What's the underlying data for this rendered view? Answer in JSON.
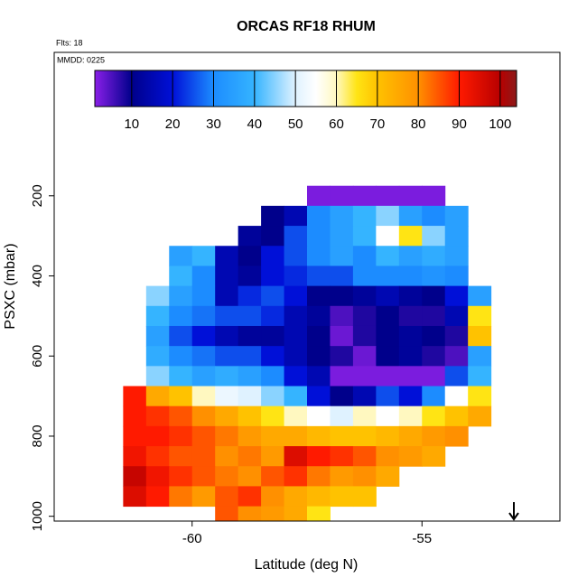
{
  "chart_data": {
    "type": "heatmap",
    "title": "ORCAS RF18 RHUM",
    "flights_label": "Flts: 18",
    "date_label": "MMDD: 0225",
    "x_label": "Latitude (deg N)",
    "y_label": "PSXC (mbar)",
    "xlim": [
      -63,
      -52
    ],
    "xticks": [
      -60,
      -55
    ],
    "ylim": [
      1012,
      -158
    ],
    "yticks": [
      200,
      400,
      600,
      800,
      1000
    ],
    "x": [
      -61.25,
      -60.75,
      -60.25,
      -59.75,
      -59.25,
      -58.75,
      -58.25,
      -57.75,
      -57.25,
      -56.75,
      -56.25,
      -55.75,
      -55.25,
      -54.75,
      -54.25,
      -53.75
    ],
    "y": [
      200,
      250,
      300,
      350,
      400,
      450,
      500,
      550,
      600,
      650,
      700,
      750,
      800,
      850,
      900,
      950,
      1000
    ],
    "z": [
      [
        null,
        null,
        null,
        null,
        null,
        null,
        null,
        null,
        2,
        2,
        2,
        2,
        2,
        2,
        null,
        null
      ],
      [
        null,
        null,
        null,
        null,
        null,
        null,
        10,
        15,
        30,
        35,
        40,
        45,
        35,
        30,
        35,
        null
      ],
      [
        null,
        null,
        null,
        null,
        null,
        12,
        10,
        25,
        30,
        35,
        40,
        55,
        65,
        45,
        35,
        null
      ],
      [
        null,
        null,
        35,
        40,
        15,
        10,
        20,
        25,
        30,
        35,
        30,
        40,
        35,
        38,
        35,
        null
      ],
      [
        null,
        null,
        40,
        30,
        15,
        12,
        20,
        22,
        25,
        25,
        30,
        30,
        30,
        32,
        30,
        null
      ],
      [
        null,
        45,
        35,
        30,
        15,
        22,
        25,
        20,
        10,
        10,
        12,
        15,
        12,
        10,
        20,
        35
      ],
      [
        null,
        40,
        30,
        28,
        25,
        25,
        22,
        15,
        12,
        5,
        8,
        10,
        8,
        8,
        15,
        65
      ],
      [
        null,
        35,
        25,
        20,
        15,
        12,
        12,
        15,
        10,
        3,
        8,
        10,
        12,
        10,
        8,
        70
      ],
      [
        null,
        38,
        30,
        28,
        25,
        25,
        20,
        15,
        10,
        8,
        3,
        10,
        12,
        8,
        5,
        35
      ],
      [
        null,
        45,
        40,
        35,
        38,
        35,
        30,
        20,
        15,
        2,
        2,
        2,
        2,
        2,
        25,
        40
      ],
      [
        90,
        75,
        70,
        60,
        52,
        50,
        45,
        40,
        20,
        10,
        15,
        25,
        20,
        30,
        55,
        65
      ],
      [
        90,
        88,
        85,
        80,
        75,
        70,
        65,
        60,
        55,
        50,
        60,
        55,
        60,
        65,
        70,
        75
      ],
      [
        90,
        90,
        88,
        85,
        82,
        78,
        75,
        75,
        72,
        70,
        70,
        72,
        75,
        78,
        80,
        null
      ],
      [
        92,
        88,
        85,
        85,
        80,
        82,
        78,
        95,
        90,
        88,
        85,
        80,
        78,
        75,
        null,
        null
      ],
      [
        98,
        92,
        88,
        85,
        82,
        80,
        85,
        88,
        82,
        78,
        80,
        75,
        null,
        null,
        null,
        null
      ],
      [
        95,
        90,
        82,
        78,
        85,
        88,
        80,
        75,
        72,
        70,
        70,
        null,
        null,
        null,
        null,
        null
      ],
      [
        null,
        null,
        null,
        null,
        85,
        80,
        78,
        75,
        65,
        null,
        null,
        null,
        null,
        null,
        null,
        null
      ]
    ],
    "colorbar_lim": [
      1,
      104
    ],
    "colorbar_ticks": [
      10,
      20,
      30,
      40,
      50,
      60,
      70,
      80,
      90,
      100
    ],
    "colorscale": [
      {
        "value": 1,
        "color": "#8a1fe8"
      },
      {
        "value": 10,
        "color": "#00008b"
      },
      {
        "value": 20,
        "color": "#0010d8"
      },
      {
        "value": 30,
        "color": "#1c8cff"
      },
      {
        "value": 40,
        "color": "#35b4ff"
      },
      {
        "value": 50,
        "color": "#dff2ff"
      },
      {
        "value": 55,
        "color": "#ffffff"
      },
      {
        "value": 60,
        "color": "#fff8c0"
      },
      {
        "value": 65,
        "color": "#ffe414"
      },
      {
        "value": 70,
        "color": "#ffc200"
      },
      {
        "value": 80,
        "color": "#ff9000"
      },
      {
        "value": 90,
        "color": "#ff1a00"
      },
      {
        "value": 100,
        "color": "#b80000"
      },
      {
        "value": 104,
        "color": "#8b1a1a"
      }
    ]
  }
}
